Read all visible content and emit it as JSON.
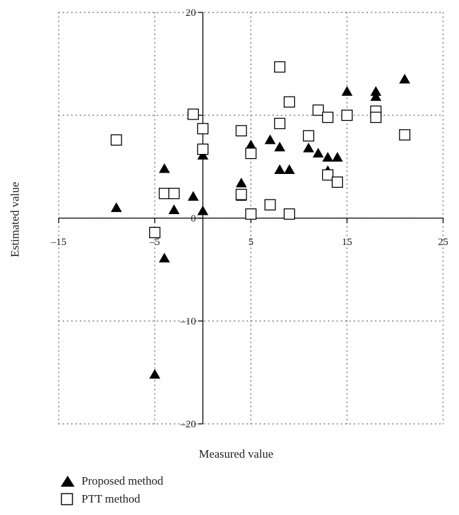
{
  "chart_data": {
    "type": "scatter",
    "xlabel": "Measured value",
    "ylabel": "Estimated value",
    "xlim": [
      -15,
      25
    ],
    "ylim": [
      -20,
      20
    ],
    "x_ticks": [
      -15,
      -5,
      5,
      15,
      25
    ],
    "x_tick_labels": [
      "–15",
      "–5",
      "5",
      "15",
      "25"
    ],
    "y_ticks": [
      -20,
      -10,
      0,
      10,
      20
    ],
    "y_tick_labels": [
      "–20",
      "–10",
      "0",
      "10",
      "20"
    ],
    "grid": true,
    "legend_position": "bottom-left",
    "series": [
      {
        "name": "Proposed method",
        "marker": "filled-triangle",
        "color": "#000000",
        "points": [
          [
            -9,
            1
          ],
          [
            -4,
            4.8
          ],
          [
            -4,
            -3.9
          ],
          [
            -5,
            -15.2
          ],
          [
            -3,
            0.8
          ],
          [
            -1,
            2.1
          ],
          [
            0,
            6.1
          ],
          [
            0,
            0.7
          ],
          [
            4,
            3.4
          ],
          [
            4,
            2.1
          ],
          [
            5,
            7.1
          ],
          [
            7,
            7.6
          ],
          [
            8,
            6.9
          ],
          [
            8,
            4.7
          ],
          [
            9,
            4.7
          ],
          [
            11,
            6.8
          ],
          [
            12,
            6.3
          ],
          [
            13,
            5.9
          ],
          [
            13,
            4.6
          ],
          [
            14,
            5.9
          ],
          [
            15,
            12.3
          ],
          [
            18,
            12.3
          ],
          [
            18,
            11.8
          ],
          [
            21,
            13.5
          ]
        ]
      },
      {
        "name": "PTT method",
        "marker": "open-square",
        "color": "#000000",
        "points": [
          [
            -9,
            7.6
          ],
          [
            -5,
            -1.4
          ],
          [
            -4,
            2.4
          ],
          [
            -3,
            2.4
          ],
          [
            -1,
            10.1
          ],
          [
            0,
            8.7
          ],
          [
            0,
            6.7
          ],
          [
            4,
            8.5
          ],
          [
            4,
            2.3
          ],
          [
            5,
            6.3
          ],
          [
            5,
            0.4
          ],
          [
            7,
            1.3
          ],
          [
            8,
            14.7
          ],
          [
            8,
            9.2
          ],
          [
            9,
            11.3
          ],
          [
            9,
            0.4
          ],
          [
            11,
            8.0
          ],
          [
            12,
            10.5
          ],
          [
            13,
            9.8
          ],
          [
            13,
            4.2
          ],
          [
            14,
            3.5
          ],
          [
            15,
            10.0
          ],
          [
            18,
            10.4
          ],
          [
            18,
            9.8
          ],
          [
            21,
            8.1
          ]
        ]
      }
    ]
  },
  "legend": {
    "items": [
      {
        "label": "Proposed method"
      },
      {
        "label": "PTT method"
      }
    ]
  }
}
